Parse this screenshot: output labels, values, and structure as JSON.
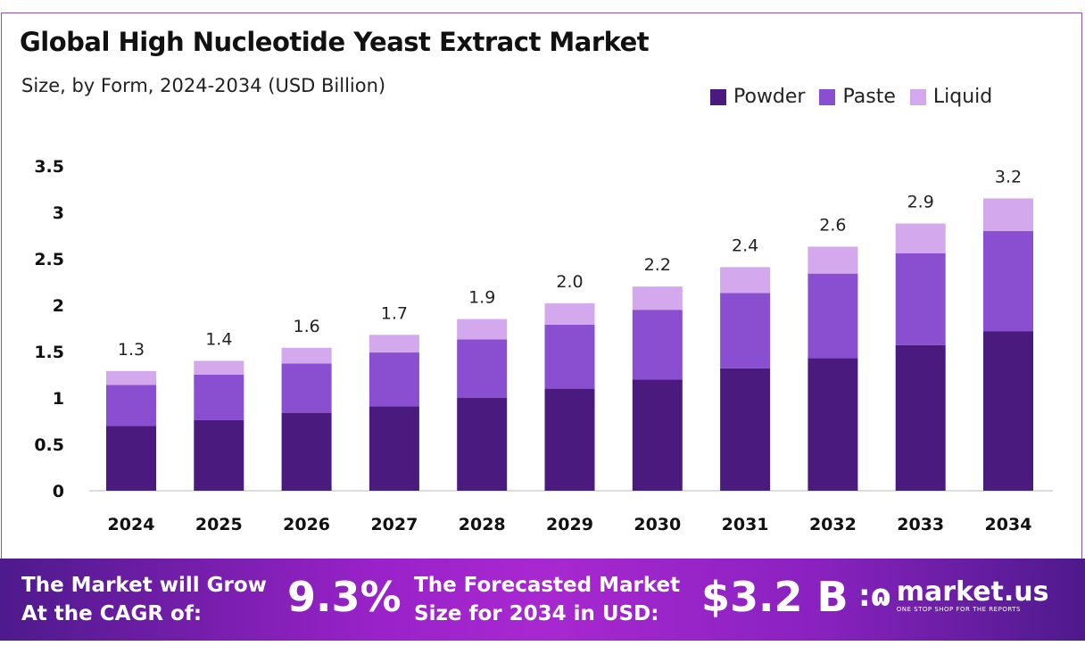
{
  "chart_data": {
    "type": "bar",
    "stacked": true,
    "title": "Global High Nucleotide Yeast Extract Market",
    "subtitle": "Size, by Form, 2024-2034 (USD Billion)",
    "categories": [
      "2024",
      "2025",
      "2026",
      "2027",
      "2028",
      "2029",
      "2030",
      "2031",
      "2032",
      "2033",
      "2034"
    ],
    "series": [
      {
        "name": "Powder",
        "color": "#4a1a7e",
        "values": [
          0.7,
          0.76,
          0.84,
          0.91,
          1.0,
          1.1,
          1.2,
          1.32,
          1.43,
          1.57,
          1.72
        ]
      },
      {
        "name": "Paste",
        "color": "#8a4fd0",
        "values": [
          0.44,
          0.49,
          0.53,
          0.58,
          0.63,
          0.69,
          0.75,
          0.81,
          0.91,
          0.99,
          1.08
        ]
      },
      {
        "name": "Liquid",
        "color": "#d3a8ec",
        "values": [
          0.15,
          0.15,
          0.17,
          0.19,
          0.22,
          0.23,
          0.25,
          0.28,
          0.29,
          0.32,
          0.35
        ]
      }
    ],
    "totals": [
      "1.3",
      "1.4",
      "1.6",
      "1.7",
      "1.9",
      "2.0",
      "2.2",
      "2.4",
      "2.6",
      "2.9",
      "3.2"
    ],
    "yticks": [
      "0",
      "0.5",
      "1",
      "1.5",
      "2",
      "2.5",
      "3",
      "3.5"
    ],
    "ylim": [
      0,
      3.5
    ],
    "grid": false,
    "legend_position": "top-right"
  },
  "footer": {
    "cagr_label_1": "The Market will Grow",
    "cagr_label_2": "At the CAGR of:",
    "cagr_value": "9.3%",
    "forecast_label_1": "The Forecasted Market",
    "forecast_label_2": "Size for 2034 in USD:",
    "forecast_value": "$3.2 B",
    "logo_name": "market.us",
    "logo_tagline": "ONE STOP SHOP FOR THE REPORTS"
  }
}
